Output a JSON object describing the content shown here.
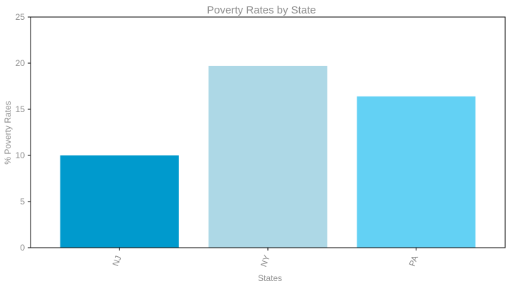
{
  "chart_data": {
    "type": "bar",
    "title": "Poverty Rates by State",
    "xlabel": "States",
    "ylabel": "% Poverty Rates",
    "categories": [
      "NJ",
      "NY",
      "PA"
    ],
    "values": [
      10.0,
      19.7,
      16.4
    ],
    "colors": [
      "#009acd",
      "#add8e6",
      "#63d1f4"
    ],
    "ylim": [
      0,
      25
    ],
    "yticks": [
      "0",
      "5",
      "10",
      "15",
      "20",
      "25"
    ],
    "grid": false,
    "legend": "none"
  }
}
